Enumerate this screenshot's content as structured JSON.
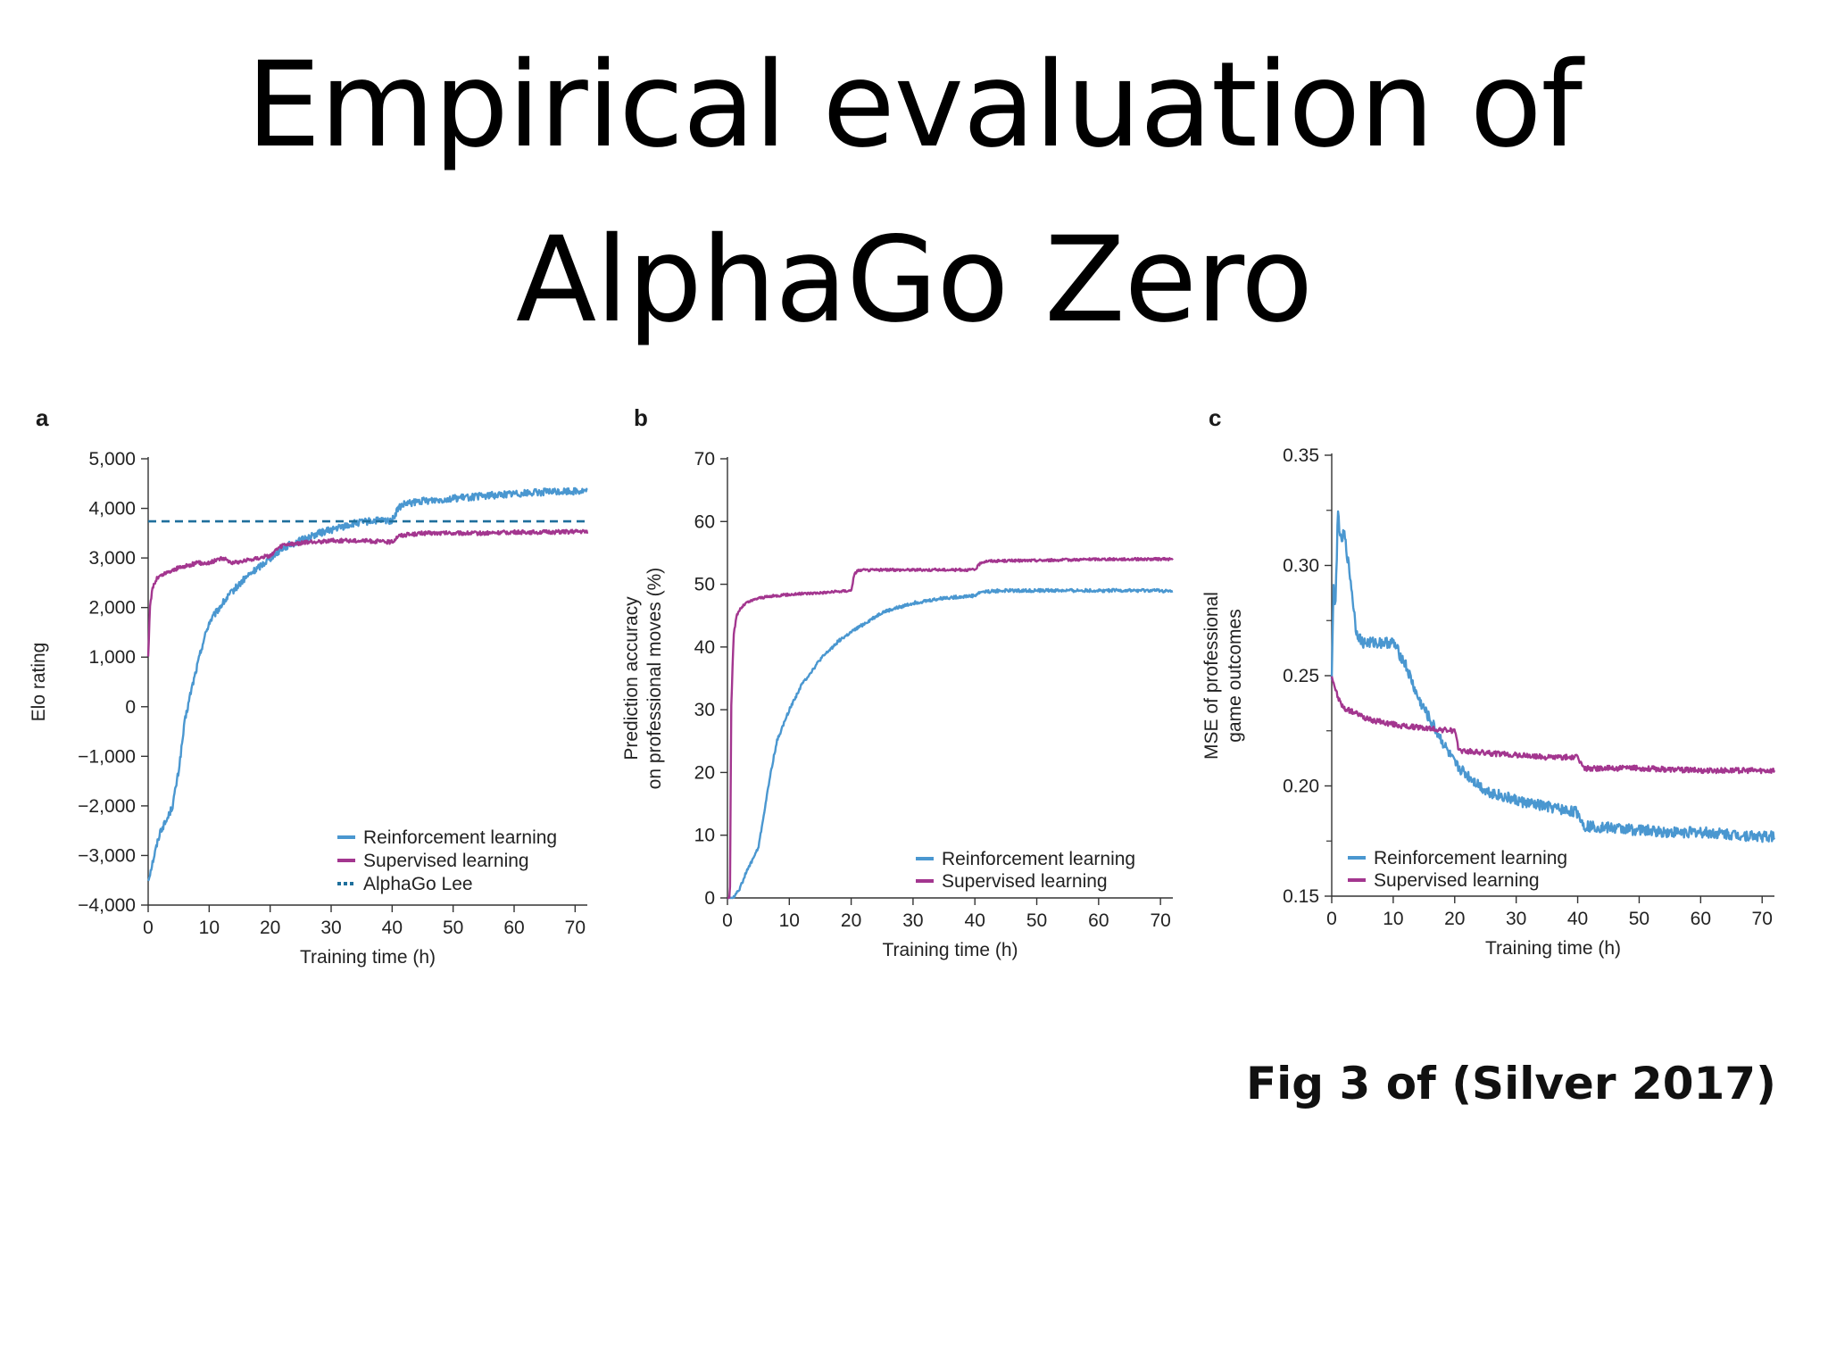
{
  "slide": {
    "title_line1": "Empirical evaluation of",
    "title_line2": "AlphaGo Zero",
    "caption": "Fig 3 of (Silver 2017)"
  },
  "colors": {
    "reinforcement": "#4a97d0",
    "supervised": "#a3368f",
    "alphago_lee": "#1f6f9c"
  },
  "chart_data": [
    {
      "panel": "a",
      "type": "line",
      "xlabel": "Training time (h)",
      "ylabel": "Elo rating",
      "xlim": [
        0,
        72
      ],
      "ylim": [
        -4000,
        5000
      ],
      "xticks": [
        0,
        10,
        20,
        30,
        40,
        50,
        60,
        70
      ],
      "xtick_labels": [
        "0",
        "10",
        "20",
        "30",
        "40",
        "50",
        "60",
        "70"
      ],
      "yticks": [
        -4000,
        -3000,
        -2000,
        -1000,
        0,
        1000,
        2000,
        3000,
        4000,
        5000
      ],
      "ytick_labels": [
        "−4,000",
        "−3,000",
        "−2,000",
        "−1,000",
        "0",
        "1,000",
        "2,000",
        "3,000",
        "4,000",
        "5,000"
      ],
      "legend_position": "bottom-right",
      "series": [
        {
          "name": "Reinforcement learning",
          "color": "#4a97d0",
          "style": "solid",
          "noise": 70,
          "x": [
            0,
            1,
            2,
            3,
            4,
            5,
            6,
            7,
            8,
            9,
            10,
            12,
            14,
            16,
            18,
            20,
            22,
            25,
            28,
            31,
            34,
            37,
            40,
            41,
            42,
            45,
            50,
            55,
            60,
            65,
            70,
            72
          ],
          "y": [
            -3500,
            -3000,
            -2500,
            -2300,
            -2000,
            -1300,
            -300,
            300,
            800,
            1300,
            1700,
            2050,
            2350,
            2600,
            2800,
            3000,
            3200,
            3350,
            3500,
            3600,
            3700,
            3750,
            3750,
            4000,
            4080,
            4150,
            4200,
            4250,
            4300,
            4330,
            4350,
            4350
          ]
        },
        {
          "name": "Supervised learning",
          "color": "#a3368f",
          "style": "solid",
          "noise": 40,
          "x": [
            0,
            0.3,
            0.7,
            1.5,
            3,
            5,
            8,
            10,
            12,
            14,
            16,
            18,
            20,
            22,
            25,
            30,
            35,
            40,
            41,
            45,
            50,
            55,
            60,
            65,
            70,
            72
          ],
          "y": [
            1000,
            2000,
            2400,
            2600,
            2700,
            2800,
            2900,
            2900,
            3000,
            2900,
            2950,
            3000,
            3050,
            3250,
            3300,
            3350,
            3350,
            3320,
            3450,
            3500,
            3500,
            3500,
            3520,
            3520,
            3530,
            3530
          ]
        },
        {
          "name": "AlphaGo Lee",
          "color": "#1f6f9c",
          "style": "dashed",
          "noise": 0,
          "x": [
            0,
            72
          ],
          "y": [
            3739,
            3739
          ]
        }
      ]
    },
    {
      "panel": "b",
      "type": "line",
      "xlabel": "Training time (h)",
      "ylabel": "Prediction accuracy on professional moves (%)",
      "ylabel_lines": [
        "Prediction accuracy",
        "on professional moves (%)"
      ],
      "xlim": [
        0,
        72
      ],
      "ylim": [
        0,
        70
      ],
      "xticks": [
        0,
        10,
        20,
        30,
        40,
        50,
        60,
        70
      ],
      "xtick_labels": [
        "0",
        "10",
        "20",
        "30",
        "40",
        "50",
        "60",
        "70"
      ],
      "yticks": [
        0,
        10,
        20,
        30,
        40,
        50,
        60,
        70
      ],
      "ytick_labels": [
        "0",
        "10",
        "20",
        "30",
        "40",
        "50",
        "60",
        "70"
      ],
      "legend_position": "bottom-right",
      "series": [
        {
          "name": "Reinforcement learning",
          "color": "#4a97d0",
          "style": "solid",
          "noise": 0.25,
          "x": [
            0,
            1,
            1.5,
            2,
            3,
            4,
            5,
            6,
            7,
            8,
            10,
            12,
            15,
            18,
            21,
            25,
            30,
            35,
            40,
            41,
            45,
            50,
            55,
            60,
            65,
            70,
            72
          ],
          "y": [
            0,
            0,
            1,
            1.5,
            4,
            6,
            8,
            14,
            20,
            25,
            30,
            34,
            38,
            41,
            43,
            45.5,
            47,
            47.8,
            48.2,
            48.8,
            49,
            49,
            49,
            49,
            49,
            49,
            48.8
          ]
        },
        {
          "name": "Supervised learning",
          "color": "#a3368f",
          "style": "solid",
          "noise": 0.2,
          "x": [
            0,
            0.4,
            0.6,
            1,
            1.5,
            2,
            3,
            5,
            8,
            12,
            16,
            20,
            20.5,
            21,
            25,
            30,
            35,
            40,
            41,
            42,
            50,
            60,
            70,
            72
          ],
          "y": [
            0,
            0,
            30,
            42,
            45,
            46,
            47,
            47.8,
            48.2,
            48.5,
            48.7,
            49,
            51.5,
            52.2,
            52.3,
            52.3,
            52.3,
            52.3,
            53.5,
            53.7,
            53.8,
            54,
            54,
            54
          ]
        }
      ]
    },
    {
      "panel": "c",
      "type": "line",
      "xlabel": "Training time (h)",
      "ylabel": "MSE of professional game outcomes",
      "ylabel_lines": [
        "MSE of professional",
        "game outcomes"
      ],
      "xlim": [
        0,
        72
      ],
      "ylim": [
        0.15,
        0.35
      ],
      "xticks": [
        0,
        10,
        20,
        30,
        40,
        50,
        60,
        70
      ],
      "xtick_labels": [
        "0",
        "10",
        "20",
        "30",
        "40",
        "50",
        "60",
        "70"
      ],
      "yticks": [
        0.15,
        0.2,
        0.25,
        0.3,
        0.35
      ],
      "ytick_labels": [
        "0.15",
        "0.20",
        "0.25",
        "0.30",
        "0.35"
      ],
      "minor_yticks": [
        0.175,
        0.225,
        0.275,
        0.325
      ],
      "legend_position": "bottom-left",
      "series": [
        {
          "name": "Reinforcement learning",
          "color": "#4a97d0",
          "style": "solid",
          "noise": 0.0025,
          "x": [
            0,
            0.3,
            0.6,
            1,
            1.5,
            2,
            3,
            4,
            5,
            6,
            8,
            10,
            12,
            14,
            16,
            18,
            20,
            22,
            25,
            28,
            32,
            36,
            40,
            41,
            45,
            50,
            55,
            60,
            65,
            70,
            72
          ],
          "y": [
            0.25,
            0.29,
            0.28,
            0.325,
            0.31,
            0.315,
            0.295,
            0.27,
            0.265,
            0.265,
            0.265,
            0.265,
            0.255,
            0.24,
            0.23,
            0.22,
            0.21,
            0.205,
            0.198,
            0.195,
            0.192,
            0.19,
            0.188,
            0.182,
            0.181,
            0.18,
            0.179,
            0.179,
            0.178,
            0.177,
            0.177
          ]
        },
        {
          "name": "Supervised learning",
          "color": "#a3368f",
          "style": "solid",
          "noise": 0.0012,
          "x": [
            0,
            0.5,
            1,
            2,
            4,
            6,
            8,
            12,
            16,
            20,
            20.5,
            21,
            25,
            30,
            35,
            40,
            41,
            42,
            50,
            60,
            70,
            72
          ],
          "y": [
            0.25,
            0.245,
            0.24,
            0.235,
            0.233,
            0.23,
            0.229,
            0.227,
            0.226,
            0.225,
            0.218,
            0.216,
            0.215,
            0.214,
            0.213,
            0.213,
            0.208,
            0.208,
            0.208,
            0.207,
            0.207,
            0.207
          ]
        }
      ]
    }
  ]
}
